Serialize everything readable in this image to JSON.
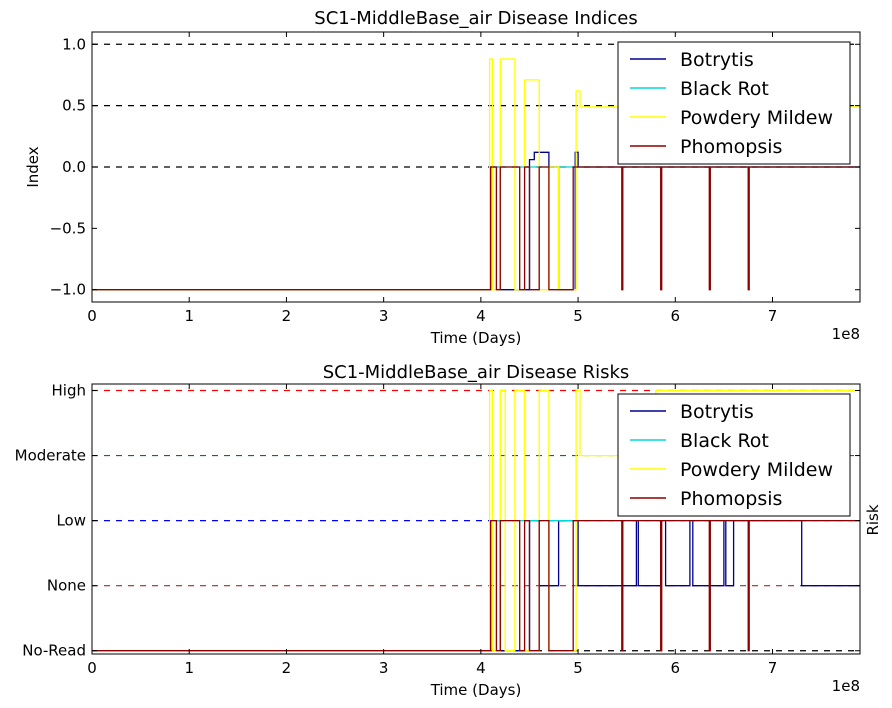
{
  "chart_data": [
    {
      "type": "line",
      "title": "SC1-MiddleBase_air Disease Indices",
      "xlabel": "Time (Days)",
      "ylabel": "Index",
      "x_offset_label": "1e8",
      "xlim": [
        0,
        7.9
      ],
      "ylim": [
        -1.1,
        1.1
      ],
      "x_ticks": [
        0,
        1,
        2,
        3,
        4,
        5,
        6,
        7
      ],
      "x_tick_labels": [
        "0",
        "1",
        "2",
        "3",
        "4",
        "5",
        "6",
        "7"
      ],
      "y_ticks": [
        -1.0,
        -0.5,
        0.0,
        0.5,
        1.0
      ],
      "y_tick_labels": [
        "−1.0",
        "−0.5",
        "0.0",
        "0.5",
        "1.0"
      ],
      "reference_lines": [
        {
          "y": 1.0,
          "color": "#000000"
        },
        {
          "y": 0.5,
          "color": "#000000"
        },
        {
          "y": 0.0,
          "color": "#000000"
        }
      ],
      "legend": {
        "position": "top-right",
        "entries": [
          "Botrytis",
          "Black Rot",
          "Powdery Mildew",
          "Phomopsis"
        ]
      },
      "series": [
        {
          "name": "Botrytis",
          "color": "#00008b",
          "x": [
            0,
            4.1,
            4.1,
            4.2,
            4.2,
            4.5,
            4.5,
            4.55,
            4.55,
            4.7,
            4.7,
            4.8,
            4.8,
            4.97,
            4.97,
            5.0,
            5.0,
            7.9
          ],
          "y": [
            -1,
            -1,
            0,
            0,
            -1,
            -1,
            0.06,
            0.06,
            0.12,
            0.12,
            0,
            0,
            -1,
            -1,
            0.12,
            0.12,
            0,
            0
          ]
        },
        {
          "name": "Black Rot",
          "color": "#00d8d8",
          "x": [
            0,
            4.1,
            4.1,
            7.9
          ],
          "y": [
            -1,
            -1,
            0,
            0
          ]
        },
        {
          "name": "Powdery Mildew",
          "color": "#ffff00",
          "x": [
            0,
            4.09,
            4.09,
            4.12,
            4.12,
            4.2,
            4.2,
            4.25,
            4.25,
            4.35,
            4.35,
            4.45,
            4.45,
            4.5,
            4.5,
            4.6,
            4.6,
            4.7,
            4.7,
            4.8,
            4.8,
            4.98,
            4.98,
            5.02,
            5.02,
            7.9
          ],
          "y": [
            -1,
            -1,
            0.88,
            0.88,
            -1,
            -1,
            0.88,
            0.88,
            0.88,
            0.88,
            -1,
            -1,
            0.71,
            0.71,
            0.71,
            0.71,
            -1,
            -1,
            0.0,
            0.0,
            -1,
            -1,
            0.62,
            0.62,
            0.49,
            0.49
          ]
        },
        {
          "name": "Phomopsis",
          "color": "#8b0000",
          "x": [
            0,
            4.1,
            4.1,
            4.16,
            4.16,
            4.2,
            4.2,
            4.4,
            4.4,
            4.45,
            4.45,
            4.5,
            4.5,
            4.6,
            4.6,
            4.7,
            4.7,
            4.95,
            4.95,
            5.45,
            5.45,
            5.46,
            5.46,
            5.85,
            5.85,
            5.86,
            5.86,
            6.35,
            6.35,
            6.36,
            6.36,
            6.75,
            6.75,
            6.76,
            6.76,
            7.9
          ],
          "y": [
            -1,
            -1,
            0,
            0,
            -1,
            -1,
            0,
            0,
            -1,
            -1,
            0,
            0,
            -1,
            -1,
            0,
            0,
            -1,
            -1,
            0,
            0,
            -1,
            -1,
            0,
            0,
            -1,
            -1,
            0,
            0,
            -1,
            -1,
            0,
            0,
            -1,
            -1,
            0,
            0
          ]
        }
      ]
    },
    {
      "type": "line",
      "title": "SC1-MiddleBase_air Disease Risks",
      "xlabel": "Time (Days)",
      "ylabel": "Risk",
      "x_offset_label": "1e8",
      "xlim": [
        0,
        7.9
      ],
      "ylim": [
        -0.05,
        4.1
      ],
      "x_ticks": [
        0,
        1,
        2,
        3,
        4,
        5,
        6,
        7
      ],
      "x_tick_labels": [
        "0",
        "1",
        "2",
        "3",
        "4",
        "5",
        "6",
        "7"
      ],
      "y_ticks": [
        0,
        1,
        2,
        3,
        4
      ],
      "y_tick_labels": [
        "No-Read",
        "None",
        "Low",
        "Moderate",
        "High"
      ],
      "reference_lines": [
        {
          "y": 4,
          "color": "#ff0000"
        },
        {
          "y": 3,
          "color": "#008000"
        },
        {
          "y": 2,
          "color": "#0000ff"
        },
        {
          "y": 1,
          "color": "#a52a2a"
        },
        {
          "y": 0,
          "color": "#000000"
        }
      ],
      "legend": {
        "position": "top-right",
        "entries": [
          "Botrytis",
          "Black Rot",
          "Powdery Mildew",
          "Phomopsis"
        ]
      },
      "series": [
        {
          "name": "Botrytis",
          "color": "#00008b",
          "x": [
            0,
            4.1,
            4.1,
            4.2,
            4.2,
            4.5,
            4.5,
            4.6,
            4.6,
            4.8,
            4.8,
            5.0,
            5.0,
            5.6,
            5.6,
            5.62,
            5.62,
            5.85,
            5.85,
            5.9,
            5.9,
            6.15,
            6.15,
            6.18,
            6.18,
            6.5,
            6.5,
            6.52,
            6.52,
            6.6,
            6.6,
            7.3,
            7.3,
            7.35,
            7.35,
            7.9
          ],
          "y": [
            0,
            0,
            2,
            2,
            0,
            0,
            2,
            2,
            1,
            1,
            2,
            2,
            1,
            1,
            2,
            2,
            1,
            1,
            2,
            2,
            1,
            1,
            2,
            2,
            1,
            1,
            2,
            2,
            1,
            1,
            2,
            2,
            1,
            1,
            1,
            1
          ]
        },
        {
          "name": "Black Rot",
          "color": "#00d8d8",
          "x": [
            0,
            4.1,
            4.1,
            7.9
          ],
          "y": [
            0,
            0,
            2,
            2
          ]
        },
        {
          "name": "Powdery Mildew",
          "color": "#ffff00",
          "x": [
            0,
            4.09,
            4.09,
            4.12,
            4.12,
            4.2,
            4.2,
            4.25,
            4.25,
            4.35,
            4.35,
            4.45,
            4.45,
            4.6,
            4.6,
            4.7,
            4.7,
            4.98,
            4.98,
            5.02,
            5.02,
            5.8,
            5.8,
            7.9
          ],
          "y": [
            0,
            0,
            4,
            4,
            0,
            0,
            4,
            4,
            0,
            0,
            4,
            4,
            0,
            0,
            4,
            4,
            0,
            0,
            4,
            4,
            3,
            3,
            4,
            4
          ]
        },
        {
          "name": "Phomopsis",
          "color": "#8b0000",
          "x": [
            0,
            4.1,
            4.1,
            4.16,
            4.16,
            4.2,
            4.2,
            4.4,
            4.4,
            4.45,
            4.45,
            4.5,
            4.5,
            4.6,
            4.6,
            4.7,
            4.7,
            4.95,
            4.95,
            5.45,
            5.45,
            5.46,
            5.46,
            5.85,
            5.85,
            5.86,
            5.86,
            6.35,
            6.35,
            6.36,
            6.36,
            6.75,
            6.75,
            6.76,
            6.76,
            7.9
          ],
          "y": [
            0,
            0,
            2,
            2,
            0,
            0,
            2,
            2,
            0,
            0,
            2,
            2,
            0,
            0,
            2,
            2,
            0,
            0,
            2,
            2,
            0,
            0,
            2,
            2,
            0,
            0,
            2,
            2,
            0,
            0,
            2,
            2,
            0,
            0,
            2,
            2
          ]
        }
      ]
    }
  ]
}
